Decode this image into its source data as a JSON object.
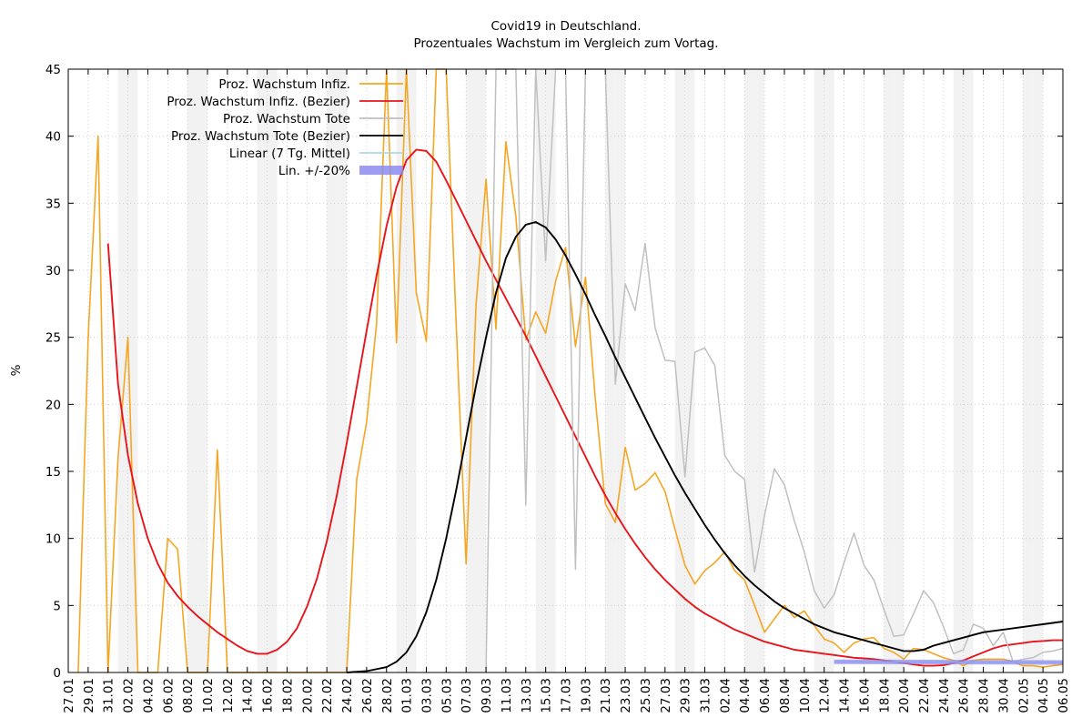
{
  "chart_data": {
    "type": "line",
    "title": "Covid19 in Deutschland.",
    "subtitle": "Prozentuales Wachstum im Vergleich zum Vortag.",
    "ylabel": "%",
    "xlabel": "",
    "ylim": [
      0,
      45
    ],
    "yticks": [
      "0",
      "5",
      "10",
      "15",
      "20",
      "25",
      "30",
      "35",
      "40",
      "45"
    ],
    "x_start": "27.01",
    "x_end": "06.05",
    "xticks": [
      "27.01",
      "29.01",
      "31.01",
      "02.02",
      "04.02",
      "06.02",
      "08.02",
      "10.02",
      "12.02",
      "14.02",
      "16.02",
      "18.02",
      "20.02",
      "22.02",
      "24.02",
      "26.02",
      "28.02",
      "01.03",
      "03.03",
      "05.03",
      "07.03",
      "09.03",
      "11.03",
      "13.03",
      "15.03",
      "17.03",
      "19.03",
      "21.03",
      "23.03",
      "25.03",
      "27.03",
      "29.03",
      "31.03",
      "02.04",
      "04.04",
      "06.04",
      "08.04",
      "10.04",
      "12.04",
      "14.04",
      "16.04",
      "18.04",
      "20.04",
      "22.04",
      "24.04",
      "26.04",
      "28.04",
      "30.04",
      "02.05",
      "04.05",
      "06.05"
    ],
    "weekend_shading": "weekends shaded grey",
    "grid": true,
    "legend_position": "top-left",
    "colors": {
      "infiz": "#f5a623",
      "infiz_bezier": "#e8141b",
      "tote": "#c0c0c0",
      "tote_bezier": "#000000",
      "linear": "#add8e6",
      "band": "#8c8cf0",
      "weekend": "#f2f2f2"
    },
    "series": [
      {
        "name": "Proz. Wachstum Infiz.",
        "color_key": "infiz",
        "x": [
          "28.01",
          "29.01",
          "30.01",
          "31.01",
          "01.02",
          "02.02",
          "03.02",
          "04.02",
          "05.02",
          "06.02",
          "07.02",
          "08.02",
          "09.02",
          "10.02",
          "11.02",
          "12.02",
          "13.02",
          "14.02",
          "15.02",
          "16.02",
          "17.02",
          "18.02",
          "19.02",
          "20.02",
          "21.02",
          "22.02",
          "23.02",
          "24.02",
          "25.02",
          "26.02",
          "27.02",
          "28.02",
          "29.02",
          "01.03",
          "02.03",
          "03.03",
          "04.03",
          "05.03",
          "06.03",
          "07.03",
          "08.03",
          "09.03",
          "10.03",
          "11.03",
          "12.03",
          "13.03",
          "14.03",
          "15.03",
          "16.03",
          "17.03",
          "18.03",
          "19.03",
          "20.03",
          "21.03",
          "22.03",
          "23.03",
          "24.03",
          "25.03",
          "26.03",
          "27.03",
          "28.03",
          "29.03",
          "30.03",
          "31.03",
          "01.04",
          "02.04",
          "03.04",
          "04.04",
          "05.04",
          "06.04",
          "07.04",
          "08.04",
          "09.04",
          "10.04",
          "11.04",
          "12.04",
          "13.04",
          "14.04",
          "15.04",
          "16.04",
          "17.04",
          "18.04",
          "19.04",
          "20.04",
          "21.04",
          "22.04",
          "23.04",
          "24.04",
          "25.04",
          "26.04",
          "27.04",
          "28.04",
          "29.04",
          "30.04",
          "01.05",
          "02.05",
          "03.05",
          "04.05",
          "05.05",
          "06.05"
        ],
        "values": [
          0,
          25,
          40,
          0,
          16,
          25,
          0,
          0,
          0,
          10,
          9.2,
          0,
          0,
          0,
          16.6,
          0,
          0,
          0,
          0,
          0,
          0,
          0,
          0,
          0,
          0,
          0,
          0,
          0,
          14.4,
          18.7,
          26,
          45,
          24.6,
          45,
          28.3,
          24.7,
          45,
          45,
          26,
          8.1,
          27.4,
          36.8,
          25.6,
          39.6,
          34,
          24.8,
          26.9,
          25.3,
          29.2,
          31.7,
          24.3,
          29.5,
          20.3,
          12.6,
          11.2,
          16.8,
          13.6,
          14.1,
          14.9,
          13.5,
          10.7,
          8,
          6.6,
          7.6,
          8.2,
          9,
          7.6,
          6.9,
          5,
          3,
          4,
          5,
          4.1,
          4.6,
          3.5,
          2.5,
          2.2,
          1.5,
          2.2,
          2.5,
          2.6,
          1.8,
          1.5,
          1,
          1.8,
          1.7,
          1.4,
          1.1,
          0.9,
          0.5,
          0.9,
          1,
          1,
          1,
          0.8,
          0.5,
          0.5,
          0.4,
          0.5,
          0.6
        ]
      },
      {
        "name": "Proz. Wachstum Infiz. (Bezier)",
        "color_key": "infiz_bezier",
        "x": [
          "31.01",
          "01.02",
          "02.02",
          "03.02",
          "04.02",
          "05.02",
          "06.02",
          "07.02",
          "08.02",
          "09.02",
          "10.02",
          "11.02",
          "12.02",
          "13.02",
          "14.02",
          "15.02",
          "16.02",
          "17.02",
          "18.02",
          "19.02",
          "20.02",
          "21.02",
          "22.02",
          "23.02",
          "24.02",
          "25.02",
          "26.02",
          "27.02",
          "28.02",
          "29.02",
          "01.03",
          "02.03",
          "03.03",
          "04.03",
          "05.03",
          "06.03",
          "07.03",
          "08.03",
          "09.03",
          "10.03",
          "11.03",
          "12.03",
          "13.03",
          "14.03",
          "15.03",
          "16.03",
          "17.03",
          "18.03",
          "19.03",
          "20.03",
          "21.03",
          "22.03",
          "23.03",
          "24.03",
          "25.03",
          "26.03",
          "27.03",
          "28.03",
          "29.03",
          "30.03",
          "31.03",
          "01.04",
          "02.04",
          "03.04",
          "04.04",
          "05.04",
          "06.04",
          "07.04",
          "08.04",
          "09.04",
          "10.04",
          "11.04",
          "12.04",
          "13.04",
          "14.04",
          "15.04",
          "16.04",
          "17.04",
          "18.04",
          "19.04",
          "20.04",
          "21.04",
          "22.04",
          "23.04",
          "24.04",
          "25.04",
          "26.04",
          "27.04",
          "28.04",
          "29.04",
          "30.04",
          "01.05",
          "02.05",
          "03.05",
          "04.05",
          "05.05",
          "06.05"
        ],
        "values": [
          32,
          21.5,
          16.2,
          12.6,
          10,
          8.1,
          6.7,
          5.7,
          4.9,
          4.2,
          3.6,
          3,
          2.5,
          2,
          1.6,
          1.4,
          1.4,
          1.7,
          2.3,
          3.3,
          4.9,
          7,
          9.8,
          13.2,
          17.1,
          21.3,
          25.5,
          29.6,
          33.3,
          36.2,
          38.2,
          39,
          38.9,
          38.1,
          36.7,
          35.2,
          33.7,
          32.2,
          30.7,
          29.3,
          27.9,
          26.5,
          25.1,
          23.6,
          22.1,
          20.6,
          19.1,
          17.6,
          16.1,
          14.6,
          13.2,
          11.9,
          10.7,
          9.6,
          8.6,
          7.7,
          6.9,
          6.2,
          5.5,
          4.9,
          4.4,
          4,
          3.6,
          3.2,
          2.9,
          2.6,
          2.3,
          2.1,
          1.9,
          1.7,
          1.6,
          1.5,
          1.4,
          1.3,
          1.2,
          1.1,
          1.05,
          1,
          0.9,
          0.8,
          0.7,
          0.6,
          0.5,
          0.5,
          0.55,
          0.7,
          0.9,
          1.2,
          1.5,
          1.8,
          2,
          2.1,
          2.2,
          2.3,
          2.35,
          2.4,
          2.4
        ]
      },
      {
        "name": "Proz. Wachstum Tote",
        "color_key": "tote",
        "x": [
          "09.03",
          "10.03",
          "11.03",
          "12.03",
          "13.03",
          "14.03",
          "15.03",
          "16.03",
          "17.03",
          "18.03",
          "19.03",
          "20.03",
          "21.03",
          "22.03",
          "23.03",
          "24.03",
          "25.03",
          "26.03",
          "27.03",
          "28.03",
          "29.03",
          "30.03",
          "31.03",
          "01.04",
          "02.04",
          "03.04",
          "04.04",
          "05.04",
          "06.04",
          "07.04",
          "08.04",
          "09.04",
          "10.04",
          "11.04",
          "12.04",
          "13.04",
          "14.04",
          "15.04",
          "16.04",
          "17.04",
          "18.04",
          "19.04",
          "20.04",
          "21.04",
          "22.04",
          "23.04",
          "24.04",
          "25.04",
          "26.04",
          "27.04",
          "28.04",
          "29.04",
          "30.04",
          "01.05",
          "02.05",
          "03.05",
          "04.05",
          "05.05",
          "06.05"
        ],
        "values": [
          0,
          45,
          45,
          45,
          12.5,
          45,
          30.7,
          45,
          45,
          7.7,
          45,
          45,
          45,
          21.5,
          29,
          27,
          32,
          25.7,
          23.3,
          23.2,
          14.6,
          23.9,
          24.2,
          22.9,
          16.2,
          15,
          14.4,
          7.5,
          11.7,
          15.2,
          14,
          11.3,
          9,
          6.1,
          4.8,
          5.8,
          8.2,
          10.4,
          8,
          6.9,
          4.7,
          2.7,
          2.8,
          4.4,
          6.1,
          5.2,
          3.4,
          1.4,
          1.7,
          3.6,
          3.3,
          2,
          3,
          0.8,
          1,
          1.1,
          1.5,
          1.6,
          1.8
        ]
      },
      {
        "name": "Proz. Wachstum Tote (Bezier)",
        "color_key": "tote_bezier",
        "x": [
          "24.02",
          "26.02",
          "28.02",
          "29.02",
          "01.03",
          "02.03",
          "03.03",
          "04.03",
          "05.03",
          "06.03",
          "07.03",
          "08.03",
          "09.03",
          "10.03",
          "11.03",
          "12.03",
          "13.03",
          "14.03",
          "15.03",
          "16.03",
          "17.03",
          "18.03",
          "19.03",
          "20.03",
          "21.03",
          "22.03",
          "23.03",
          "24.03",
          "25.03",
          "26.03",
          "27.03",
          "28.03",
          "29.03",
          "30.03",
          "31.03",
          "01.04",
          "02.04",
          "03.04",
          "04.04",
          "05.04",
          "06.04",
          "07.04",
          "08.04",
          "09.04",
          "10.04",
          "11.04",
          "12.04",
          "13.04",
          "14.04",
          "15.04",
          "16.04",
          "17.04",
          "18.04",
          "19.04",
          "20.04",
          "21.04",
          "22.04",
          "23.04",
          "24.04",
          "25.04",
          "26.04",
          "27.04",
          "28.04",
          "29.04",
          "30.04",
          "01.05",
          "02.05",
          "03.05",
          "04.05",
          "05.05",
          "06.05"
        ],
        "values": [
          0,
          0.1,
          0.4,
          0.8,
          1.5,
          2.7,
          4.5,
          6.9,
          10,
          13.6,
          17.5,
          21.4,
          25,
          28.3,
          30.9,
          32.5,
          33.4,
          33.6,
          33.2,
          32.3,
          31.1,
          29.7,
          28.2,
          26.6,
          25.1,
          23.5,
          22,
          20.5,
          19,
          17.5,
          16.1,
          14.7,
          13.4,
          12.2,
          11,
          9.9,
          8.9,
          8,
          7.2,
          6.5,
          5.9,
          5.3,
          4.8,
          4.4,
          4,
          3.6,
          3.3,
          3,
          2.8,
          2.6,
          2.4,
          2.2,
          2,
          1.8,
          1.6,
          1.6,
          1.7,
          2,
          2.2,
          2.4,
          2.6,
          2.8,
          3,
          3.1,
          3.2,
          3.3,
          3.4,
          3.5,
          3.6,
          3.7,
          3.8
        ]
      },
      {
        "name": "Linear (7 Tg. Mittel)",
        "color_key": "linear",
        "x": [
          "13.04",
          "06.05"
        ],
        "values": [
          0.8,
          0.75
        ]
      },
      {
        "name": "Lin. +/-20%",
        "color_key": "band",
        "x": [
          "13.04",
          "06.05"
        ],
        "values": [
          0.8,
          0.75
        ]
      }
    ]
  }
}
